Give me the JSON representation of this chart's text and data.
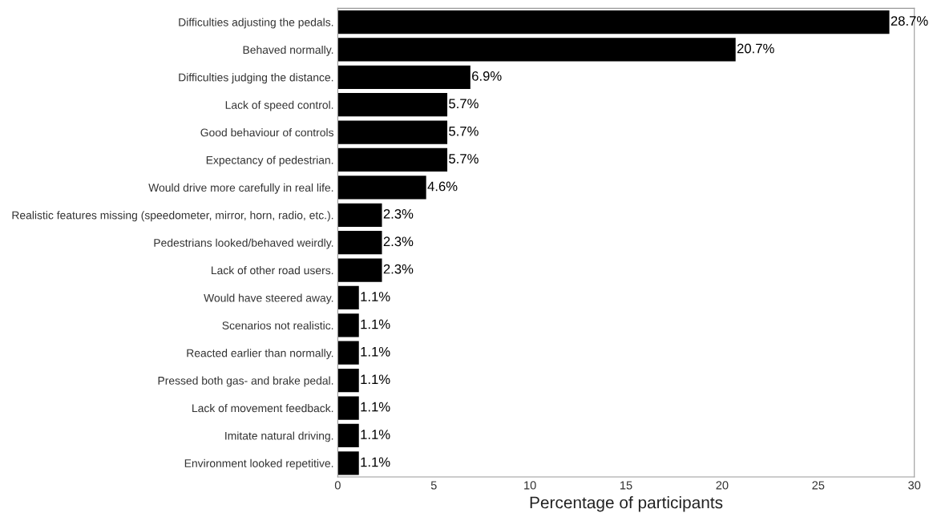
{
  "chart_data": {
    "type": "bar",
    "orientation": "horizontal",
    "xlabel": "Percentage of participants",
    "categories": [
      "Difficulties adjusting the pedals.",
      "Behaved normally.",
      "Difficulties judging the distance.",
      "Lack of speed control.",
      "Good behaviour of controls",
      "Expectancy of pedestrian.",
      "Would drive more carefully in real life.",
      "Realistic features missing (speedometer, mirror, horn, radio, etc.).",
      "Pedestrians looked/behaved weirdly.",
      "Lack of other road users.",
      "Would have steered away.",
      "Scenarios not realistic.",
      "Reacted earlier than normally.",
      "Pressed both gas- and brake pedal.",
      "Lack of movement feedback.",
      "Imitate natural driving.",
      "Environment looked repetitive."
    ],
    "values": [
      28.7,
      20.7,
      6.9,
      5.7,
      5.7,
      5.7,
      4.6,
      2.3,
      2.3,
      2.3,
      1.1,
      1.1,
      1.1,
      1.1,
      1.1,
      1.1,
      1.1
    ],
    "value_labels": [
      "28.7%",
      "20.7%",
      "6.9%",
      "5.7%",
      "5.7%",
      "5.7%",
      "4.6%",
      "2.3%",
      "2.3%",
      "2.3%",
      "1.1%",
      "1.1%",
      "1.1%",
      "1.1%",
      "1.1%",
      "1.1%",
      "1.1%"
    ],
    "color": "#000000",
    "xlim": [
      0,
      30
    ],
    "xticks": [
      0,
      5,
      10,
      15,
      20,
      25,
      30
    ],
    "grid": false,
    "legend": false
  }
}
